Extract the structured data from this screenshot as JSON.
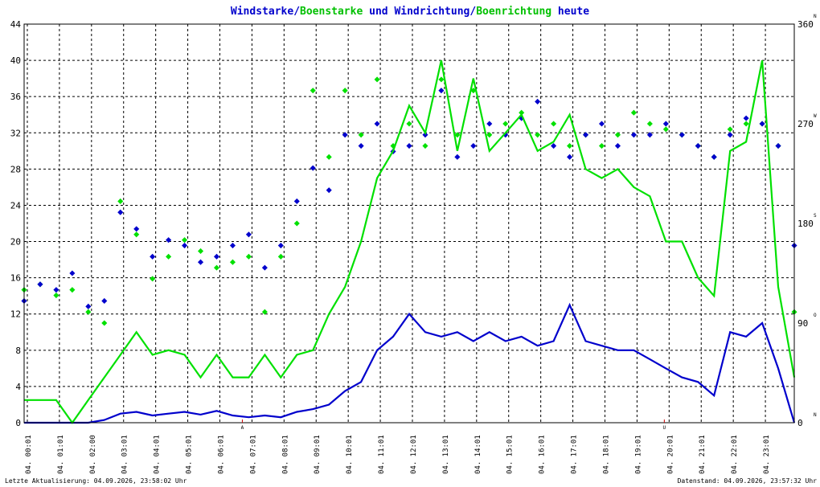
{
  "title": {
    "p1": "Windstarke",
    "slash1": "/",
    "p2": "Boenstarke",
    "p3": " und ",
    "p4": "Windrichtung",
    "slash2": "/",
    "p5": "Boenrichtung",
    "p6": " heute"
  },
  "colors": {
    "wind": "#0000cc",
    "gust": "#00e000",
    "grid": "#000000",
    "event": "#cc0000",
    "title_dark": "#0000cc",
    "title_green": "#00c000"
  },
  "footer": {
    "left": "Letzte Aktualisierung: 04.09.2026, 23:58:02 Uhr",
    "right": "Datenstand: 04.09.2026, 23:57:32 Uhr"
  },
  "markers": {
    "sunrise": "A",
    "sunset": "U"
  },
  "chart_data": {
    "type": "line",
    "y_left": {
      "min": 0,
      "max": 44,
      "ticks": [
        0,
        4,
        8,
        12,
        16,
        20,
        24,
        28,
        32,
        36,
        40,
        44
      ]
    },
    "y_right": {
      "min": 0,
      "max": 360,
      "ticks": [
        0,
        90,
        180,
        270,
        360
      ],
      "compass": [
        "N",
        "O",
        "S",
        "W",
        "N"
      ]
    },
    "x_ticks": [
      "04. 00:01",
      "04. 01:01",
      "04. 02:00",
      "04. 03:01",
      "04. 04:01",
      "04. 05:01",
      "04. 06:01",
      "04. 07:01",
      "04. 08:01",
      "04. 09:01",
      "04. 10:01",
      "04. 11:01",
      "04. 12:01",
      "04. 13:01",
      "04. 14:01",
      "04. 15:01",
      "04. 16:01",
      "04. 17:01",
      "04. 18:01",
      "04. 19:01",
      "04. 20:01",
      "04. 21:01",
      "04. 22:01",
      "04. 23:01"
    ],
    "x_range_hours": [
      0,
      24
    ],
    "event_hours": {
      "sunrise": 6.8,
      "sunset": 19.95
    },
    "series": [
      {
        "name": "Windstarke",
        "axis": "left",
        "x": [
          0,
          0.5,
          1,
          1.5,
          2,
          2.5,
          3,
          3.5,
          4,
          4.5,
          5,
          5.5,
          6,
          6.5,
          7,
          7.5,
          8,
          8.5,
          9,
          9.5,
          10,
          10.5,
          11,
          11.5,
          12,
          12.5,
          13,
          13.5,
          14,
          14.5,
          15,
          15.5,
          16,
          16.5,
          17,
          17.5,
          18,
          18.5,
          19,
          19.5,
          20,
          20.5,
          21,
          21.5,
          22,
          22.5,
          23,
          23.5,
          24
        ],
        "values": [
          0,
          0,
          0,
          0,
          0,
          0.3,
          1,
          1.2,
          0.8,
          1,
          1.2,
          0.9,
          1.3,
          0.8,
          0.6,
          0.8,
          0.6,
          1.2,
          1.5,
          2,
          3.5,
          4.5,
          8,
          9.5,
          12,
          10,
          9.5,
          10,
          9,
          10,
          9,
          9.5,
          8.5,
          9,
          13,
          9,
          8.5,
          8,
          8,
          7,
          6,
          5,
          4.5,
          3,
          10,
          9.5,
          11,
          6,
          0
        ]
      },
      {
        "name": "Boenstarke",
        "axis": "left",
        "x": [
          0,
          0.5,
          1,
          1.5,
          2,
          2.5,
          3,
          3.5,
          4,
          4.5,
          5,
          5.5,
          6,
          6.5,
          7,
          7.5,
          8,
          8.5,
          9,
          9.5,
          10,
          10.5,
          11,
          11.5,
          12,
          12.5,
          13,
          13.5,
          14,
          14.5,
          15,
          15.5,
          16,
          16.5,
          17,
          17.5,
          18,
          18.5,
          19,
          19.5,
          20,
          20.5,
          21,
          21.5,
          22,
          22.5,
          23,
          23.5,
          24
        ],
        "values": [
          2.5,
          2.5,
          2.5,
          0,
          2.5,
          5,
          7.5,
          10,
          7.5,
          8,
          7.5,
          5,
          7.5,
          5,
          5,
          7.5,
          5,
          7.5,
          8,
          12,
          15,
          20,
          27,
          30,
          35,
          32,
          40,
          30,
          38,
          30,
          32,
          34,
          30,
          31,
          34,
          28,
          27,
          28,
          26,
          25,
          20,
          20,
          16,
          14,
          30,
          31,
          40,
          15,
          5
        ]
      },
      {
        "name": "Windrichtung",
        "axis": "right",
        "x": [
          0,
          0.5,
          1,
          1.5,
          2,
          2.5,
          3,
          3.5,
          4,
          4.5,
          5,
          5.5,
          6,
          6.5,
          7,
          7.5,
          8,
          8.5,
          9,
          9.5,
          10,
          10.5,
          11,
          11.5,
          12,
          12.5,
          13,
          13.5,
          14,
          14.5,
          15,
          15.5,
          16,
          16.5,
          17,
          17.5,
          18,
          18.5,
          19,
          19.5,
          20,
          20.5,
          21,
          21.5,
          22,
          22.5,
          23,
          23.5,
          24
        ],
        "values": [
          110,
          125,
          120,
          135,
          105,
          110,
          190,
          175,
          150,
          165,
          160,
          145,
          150,
          160,
          170,
          140,
          160,
          200,
          230,
          210,
          260,
          250,
          270,
          245,
          250,
          260,
          300,
          240,
          250,
          270,
          260,
          275,
          290,
          250,
          240,
          260,
          270,
          250,
          260,
          260,
          270,
          260,
          250,
          240,
          260,
          275,
          270,
          250,
          160
        ]
      },
      {
        "name": "Boenrichtung",
        "axis": "right",
        "x": [
          0,
          0.5,
          1,
          1.5,
          2,
          2.5,
          3,
          3.5,
          4,
          4.5,
          5,
          5.5,
          6,
          6.5,
          7,
          7.5,
          8,
          8.5,
          9,
          9.5,
          10,
          10.5,
          11,
          11.5,
          12,
          12.5,
          13,
          13.5,
          14,
          14.5,
          15,
          15.5,
          16,
          16.5,
          17,
          17.5,
          18,
          18.5,
          19,
          19.5,
          20,
          20.5,
          21,
          21.5,
          22,
          22.5,
          23,
          23.5,
          24
        ],
        "values": [
          120,
          125,
          115,
          120,
          100,
          90,
          200,
          170,
          130,
          150,
          165,
          155,
          140,
          145,
          150,
          100,
          150,
          180,
          300,
          240,
          300,
          260,
          310,
          250,
          270,
          250,
          310,
          260,
          300,
          260,
          270,
          280,
          260,
          270,
          250,
          260,
          250,
          260,
          280,
          270,
          265,
          260,
          250,
          240,
          265,
          270,
          270,
          250,
          100
        ]
      }
    ]
  }
}
